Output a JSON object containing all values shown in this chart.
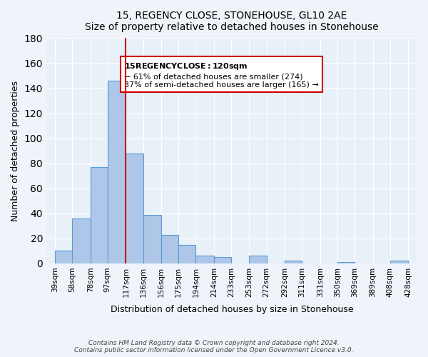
{
  "title": "15, REGENCY CLOSE, STONEHOUSE, GL10 2AE",
  "subtitle": "Size of property relative to detached houses in Stonehouse",
  "xlabel": "Distribution of detached houses by size in Stonehouse",
  "ylabel": "Number of detached properties",
  "bin_edges": [
    39,
    58,
    78,
    97,
    117,
    136,
    156,
    175,
    194,
    214,
    233,
    253,
    272,
    292,
    311,
    331,
    350,
    369,
    389,
    408,
    428
  ],
  "bar_values": [
    10,
    36,
    77,
    146,
    88,
    39,
    23,
    15,
    6,
    5,
    0,
    6,
    0,
    2,
    0,
    0,
    1,
    0,
    0,
    2
  ],
  "bar_color": "#aec6e8",
  "bar_edge_color": "#5b9bd5",
  "vline_pos": 117,
  "vline_color": "#cc0000",
  "ylim": [
    0,
    180
  ],
  "yticks": [
    0,
    20,
    40,
    60,
    80,
    100,
    120,
    140,
    160,
    180
  ],
  "annotation_title": "15 REGENCY CLOSE:  120sqm",
  "annotation_line1": "← 61% of detached houses are smaller (274)",
  "annotation_line2": "37% of semi-detached houses are larger (165) →",
  "footnote1": "Contains HM Land Registry data © Crown copyright and database right 2024.",
  "footnote2": "Contains public sector information licensed under the Open Government Licence v3.0.",
  "fig_bg_color": "#f0f4fa",
  "plot_bg_color": "#e8f0f8"
}
